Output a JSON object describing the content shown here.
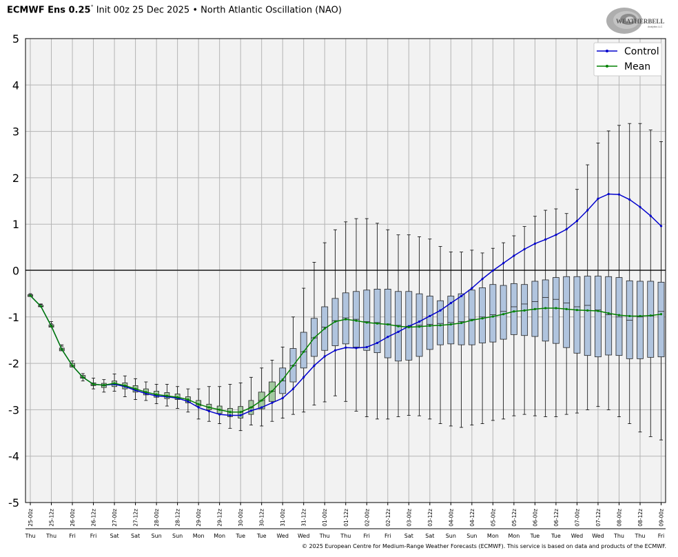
{
  "header": {
    "model": "ECMWF Ens 0.25",
    "degree_mark": "°",
    "init": "Init 00z 25 Dec 2025",
    "separator": "•",
    "index": "North Atlantic Oscillation (NAO)"
  },
  "logo": {
    "brand": "WEATHERBELL",
    "sub": "Analytics LLC"
  },
  "footer": "© 2025 European Centre for Medium-Range Weather Forecasts (ECMWF). This service is based on data and products of the ECMWF.",
  "colors": {
    "control": "#0000cc",
    "mean": "#008000",
    "box_early": "#a3c9a0",
    "box_late": "#b0c4de",
    "plot_bg": "#f2f2f2",
    "grid": "#b4b4b4"
  },
  "chart_data": {
    "type": "box-line",
    "ylim": [
      -5,
      5
    ],
    "yticks": [
      5,
      4,
      3,
      2,
      1,
      0,
      -1,
      -2,
      -3,
      -4,
      -5
    ],
    "grid": true,
    "legend_position": "top-right",
    "x": [
      "25-00z",
      "25-06z",
      "25-12z",
      "25-18z",
      "26-00z",
      "26-06z",
      "26-12z",
      "26-18z",
      "27-00z",
      "27-06z",
      "27-12z",
      "27-18z",
      "28-00z",
      "28-06z",
      "28-12z",
      "28-18z",
      "29-00z",
      "29-06z",
      "29-12z",
      "29-18z",
      "30-00z",
      "30-06z",
      "30-12z",
      "30-18z",
      "31-00z",
      "31-06z",
      "31-12z",
      "31-18z",
      "01-00z",
      "01-06z",
      "01-12z",
      "01-18z",
      "02-00z",
      "02-06z",
      "02-12z",
      "02-18z",
      "03-00z",
      "03-06z",
      "03-12z",
      "03-18z",
      "04-00z",
      "04-06z",
      "04-12z",
      "04-18z",
      "05-00z",
      "05-06z",
      "05-12z",
      "05-18z",
      "06-00z",
      "06-06z",
      "06-12z",
      "06-18z",
      "07-00z",
      "07-06z",
      "07-12z",
      "07-18z",
      "08-00z",
      "08-06z",
      "08-12z",
      "08-18z",
      "09-00z"
    ],
    "tick_labels": [
      "25-00z",
      "25-12z",
      "26-00z",
      "26-12z",
      "27-00z",
      "27-12z",
      "28-00z",
      "28-12z",
      "29-00z",
      "29-12z",
      "30-00z",
      "30-12z",
      "31-00z",
      "31-12z",
      "01-00z",
      "01-12z",
      "02-00z",
      "02-12z",
      "03-00z",
      "03-12z",
      "04-00z",
      "04-12z",
      "05-00z",
      "05-12z",
      "06-00z",
      "06-12z",
      "07-00z",
      "07-12z",
      "08-00z",
      "08-12z",
      "09-00z"
    ],
    "day_labels": [
      "Thu",
      "Thu",
      "Fri",
      "Fri",
      "Sat",
      "Sat",
      "Sun",
      "Sun",
      "Mon",
      "Mon",
      "Tue",
      "Tue",
      "Wed",
      "Wed",
      "Thu",
      "Thu",
      "Fri",
      "Fri",
      "Sat",
      "Sat",
      "Sun",
      "Sun",
      "Mon",
      "Mon",
      "Tue",
      "Tue",
      "Wed",
      "Wed",
      "Thu",
      "Thu",
      "Fri"
    ],
    "series": [
      {
        "name": "Control",
        "values": [
          -0.54,
          -0.77,
          -1.2,
          -1.7,
          -2.05,
          -2.3,
          -2.45,
          -2.47,
          -2.45,
          -2.5,
          -2.58,
          -2.65,
          -2.7,
          -2.72,
          -2.75,
          -2.82,
          -2.95,
          -3.03,
          -3.1,
          -3.12,
          -3.12,
          -3.02,
          -2.95,
          -2.85,
          -2.75,
          -2.55,
          -2.3,
          -2.05,
          -1.85,
          -1.72,
          -1.66,
          -1.67,
          -1.65,
          -1.56,
          -1.43,
          -1.32,
          -1.2,
          -1.1,
          -0.98,
          -0.86,
          -0.7,
          -0.55,
          -0.38,
          -0.18,
          0.0,
          0.16,
          0.32,
          0.46,
          0.58,
          0.67,
          0.77,
          0.89,
          1.07,
          1.3,
          1.55,
          1.65,
          1.64,
          1.53,
          1.37,
          1.18,
          0.96
        ]
      },
      {
        "name": "Mean",
        "values": [
          -0.54,
          -0.77,
          -1.2,
          -1.7,
          -2.05,
          -2.3,
          -2.45,
          -2.47,
          -2.43,
          -2.48,
          -2.55,
          -2.62,
          -2.67,
          -2.7,
          -2.73,
          -2.78,
          -2.88,
          -2.95,
          -3.0,
          -3.05,
          -3.05,
          -2.95,
          -2.8,
          -2.6,
          -2.35,
          -2.05,
          -1.75,
          -1.45,
          -1.25,
          -1.1,
          -1.05,
          -1.08,
          -1.12,
          -1.14,
          -1.16,
          -1.2,
          -1.22,
          -1.21,
          -1.19,
          -1.18,
          -1.16,
          -1.13,
          -1.07,
          -1.03,
          -0.99,
          -0.94,
          -0.88,
          -0.86,
          -0.83,
          -0.81,
          -0.81,
          -0.83,
          -0.85,
          -0.86,
          -0.87,
          -0.92,
          -0.96,
          -0.98,
          -0.98,
          -0.97,
          -0.94
        ]
      }
    ],
    "boxes": {
      "lower_whisker": [
        -0.5,
        -0.73,
        -1.15,
        -1.63,
        -2.03,
        -2.38,
        -2.55,
        -2.62,
        -2.6,
        -2.72,
        -2.78,
        -2.8,
        -2.87,
        -2.92,
        -2.97,
        -3.05,
        -3.2,
        -3.25,
        -3.3,
        -3.4,
        -3.45,
        -3.33,
        -3.35,
        -3.25,
        -3.18,
        -3.1,
        -3.05,
        -2.9,
        -2.83,
        -2.7,
        -2.82,
        -3.03,
        -3.15,
        -3.2,
        -3.2,
        -3.15,
        -3.12,
        -3.13,
        -3.2,
        -3.3,
        -3.35,
        -3.38,
        -3.33,
        -3.3,
        -3.23,
        -3.2,
        -3.13,
        -3.1,
        -3.13,
        -3.15,
        -3.15,
        -3.1,
        -3.07,
        -3.0,
        -2.93,
        -3.0,
        -3.15,
        -3.3,
        -3.48,
        -3.58,
        -3.65
      ],
      "q1": [
        -0.56,
        -0.78,
        -1.22,
        -1.73,
        -2.08,
        -2.32,
        -2.48,
        -2.52,
        -2.5,
        -2.55,
        -2.62,
        -2.68,
        -2.73,
        -2.76,
        -2.78,
        -2.85,
        -2.92,
        -3.0,
        -3.08,
        -3.15,
        -3.18,
        -3.1,
        -2.98,
        -2.82,
        -2.65,
        -2.4,
        -2.1,
        -1.85,
        -1.72,
        -1.62,
        -1.58,
        -1.65,
        -1.72,
        -1.77,
        -1.88,
        -1.95,
        -1.93,
        -1.85,
        -1.7,
        -1.6,
        -1.58,
        -1.6,
        -1.6,
        -1.56,
        -1.54,
        -1.48,
        -1.38,
        -1.4,
        -1.42,
        -1.52,
        -1.57,
        -1.66,
        -1.78,
        -1.83,
        -1.86,
        -1.82,
        -1.83,
        -1.9,
        -1.9,
        -1.87,
        -1.86
      ],
      "median": [
        -0.54,
        -0.77,
        -1.2,
        -1.7,
        -2.05,
        -2.3,
        -2.46,
        -2.48,
        -2.44,
        -2.48,
        -2.55,
        -2.62,
        -2.68,
        -2.71,
        -2.74,
        -2.8,
        -2.88,
        -2.95,
        -3.0,
        -3.05,
        -3.05,
        -2.95,
        -2.8,
        -2.6,
        -2.38,
        -2.05,
        -1.75,
        -1.45,
        -1.22,
        -1.08,
        -1.02,
        -1.05,
        -1.1,
        -1.12,
        -1.15,
        -1.18,
        -1.2,
        -1.18,
        -1.16,
        -1.14,
        -1.12,
        -1.1,
        -1.05,
        -1.0,
        -0.95,
        -0.88,
        -0.78,
        -0.72,
        -0.67,
        -0.58,
        -0.62,
        -0.7,
        -0.78,
        -0.75,
        -0.85,
        -0.95,
        -1.0,
        -1.07,
        -1.0,
        -0.98,
        -0.88
      ],
      "q3": [
        -0.52,
        -0.75,
        -1.17,
        -1.67,
        -2.0,
        -2.26,
        -2.42,
        -2.43,
        -2.38,
        -2.42,
        -2.48,
        -2.55,
        -2.6,
        -2.63,
        -2.66,
        -2.72,
        -2.8,
        -2.88,
        -2.92,
        -2.97,
        -2.93,
        -2.8,
        -2.62,
        -2.4,
        -2.1,
        -1.68,
        -1.33,
        -1.03,
        -0.78,
        -0.6,
        -0.48,
        -0.45,
        -0.42,
        -0.4,
        -0.4,
        -0.45,
        -0.45,
        -0.5,
        -0.55,
        -0.65,
        -0.55,
        -0.5,
        -0.42,
        -0.37,
        -0.3,
        -0.32,
        -0.28,
        -0.3,
        -0.23,
        -0.2,
        -0.15,
        -0.13,
        -0.13,
        -0.12,
        -0.12,
        -0.13,
        -0.15,
        -0.22,
        -0.23,
        -0.23,
        -0.25
      ],
      "upper_whisker": [
        -0.5,
        -0.72,
        -1.1,
        -1.6,
        -1.95,
        -2.22,
        -2.32,
        -2.35,
        -2.23,
        -2.27,
        -2.33,
        -2.4,
        -2.45,
        -2.45,
        -2.5,
        -2.55,
        -2.55,
        -2.5,
        -2.5,
        -2.45,
        -2.42,
        -2.3,
        -2.1,
        -1.93,
        -1.65,
        -1.0,
        -0.38,
        0.18,
        0.6,
        0.88,
        1.05,
        1.12,
        1.12,
        1.02,
        0.88,
        0.77,
        0.77,
        0.73,
        0.68,
        0.52,
        0.4,
        0.4,
        0.44,
        0.38,
        0.48,
        0.6,
        0.75,
        0.95,
        1.17,
        1.3,
        1.33,
        1.23,
        1.75,
        2.28,
        2.75,
        3.01,
        3.13,
        3.17,
        3.17,
        3.03,
        2.78
      ]
    }
  }
}
